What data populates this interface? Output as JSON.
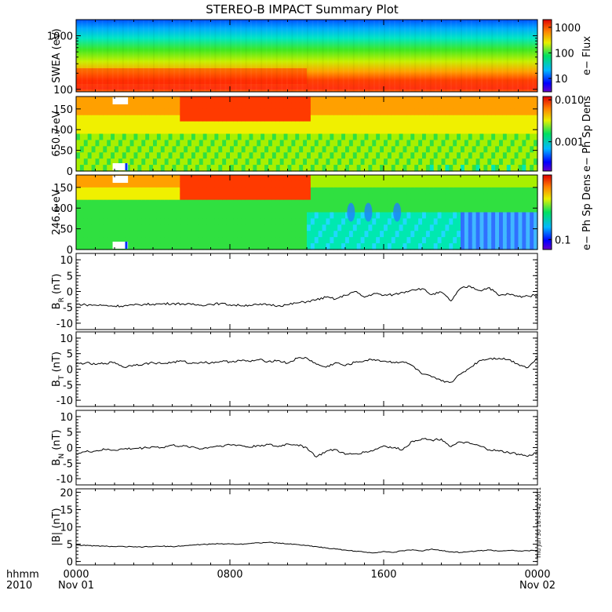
{
  "title": "STEREO-B IMPACT Summary Plot",
  "stamp": "Thu Jun 30 16:43:42 2011",
  "time_axis": {
    "hhmm_label": "hhmm",
    "year_label": "2010",
    "ticks": [
      {
        "time": "0000",
        "date": "Nov 01"
      },
      {
        "time": "0800",
        "date": ""
      },
      {
        "time": "1600",
        "date": ""
      },
      {
        "time": "0000",
        "date": "Nov 02"
      }
    ]
  },
  "chart_data": [
    {
      "type": "heatmap",
      "ylabel": "SWEA (eV)",
      "yscale": "log",
      "ylim": [
        90,
        2000
      ],
      "yticks": [
        "100",
        "1000"
      ],
      "colorbar": {
        "label": "e− Flux",
        "ticks": [
          "10",
          "100",
          "1000"
        ],
        "scale": "log",
        "range": [
          3,
          2000
        ]
      }
    },
    {
      "type": "heatmap",
      "ylabel": "650.7 eV",
      "ylim": [
        0,
        180
      ],
      "yticks": [
        "0",
        "50",
        "100",
        "150"
      ],
      "colorbar": {
        "label": "e− Ph Sp Dens",
        "ticks": [
          "0.001",
          "0.010"
        ],
        "scale": "log",
        "range": [
          0.0002,
          0.012
        ]
      }
    },
    {
      "type": "heatmap",
      "ylabel": "246.6 eV",
      "ylim": [
        0,
        180
      ],
      "yticks": [
        "0",
        "50",
        "100",
        "150"
      ],
      "colorbar": {
        "label": "e− Ph Sp Dens",
        "ticks": [
          "0.1"
        ],
        "scale": "log",
        "range": [
          0.07,
          1.0
        ]
      }
    },
    {
      "type": "line",
      "ylabel": "B_R (nT)",
      "ylim": [
        -12,
        12
      ],
      "yticks": [
        10,
        5,
        0,
        -5,
        -10
      ],
      "x_hours": [
        0,
        0.5,
        1,
        1.5,
        2,
        2.5,
        3,
        3.5,
        4,
        4.5,
        5,
        5.5,
        6,
        6.5,
        7,
        7.5,
        8,
        8.5,
        9,
        9.5,
        10,
        10.5,
        11,
        11.5,
        12,
        12.5,
        13,
        13.5,
        14,
        14.5,
        15,
        15.5,
        16,
        16.5,
        17,
        17.5,
        18,
        18.5,
        19,
        19.5,
        20,
        20.5,
        21,
        21.5,
        22,
        22.5,
        23,
        23.5,
        24
      ],
      "values": [
        -4.0,
        -4.2,
        -4.3,
        -4.4,
        -4.6,
        -4.5,
        -4.3,
        -4.1,
        -4.0,
        -3.9,
        -3.8,
        -3.9,
        -4.1,
        -4.3,
        -4.0,
        -3.8,
        -4.2,
        -4.4,
        -4.3,
        -4.2,
        -4.1,
        -4.5,
        -4.2,
        -3.6,
        -3.2,
        -2.6,
        -1.8,
        -2.4,
        -1.2,
        0.0,
        -1.8,
        -0.6,
        -1.2,
        -1.0,
        -0.3,
        0.6,
        0.9,
        -1.0,
        -0.2,
        -3.0,
        1.0,
        1.6,
        0.3,
        1.2,
        -1.3,
        -0.8,
        -1.6,
        -1.4,
        -1.2
      ]
    },
    {
      "type": "line",
      "ylabel": "B_T (nT)",
      "ylim": [
        -12,
        12
      ],
      "yticks": [
        10,
        5,
        0,
        -5,
        -10
      ],
      "x_hours": [
        0,
        0.5,
        1,
        1.5,
        2,
        2.5,
        3,
        3.5,
        4,
        4.5,
        5,
        5.5,
        6,
        6.5,
        7,
        7.5,
        8,
        8.5,
        9,
        9.5,
        10,
        10.5,
        11,
        11.5,
        12,
        12.5,
        13,
        13.5,
        14,
        14.5,
        15,
        15.5,
        16,
        16.5,
        17,
        17.5,
        18,
        18.5,
        19,
        19.5,
        20,
        20.5,
        21,
        21.5,
        22,
        22.5,
        23,
        23.5,
        24
      ],
      "values": [
        1.7,
        2.0,
        1.5,
        1.9,
        2.2,
        0.6,
        1.4,
        1.6,
        2.1,
        1.8,
        2.2,
        2.6,
        1.8,
        2.3,
        2.0,
        2.5,
        2.4,
        2.8,
        2.5,
        3.0,
        2.5,
        2.8,
        1.9,
        3.5,
        3.6,
        1.6,
        0.6,
        2.1,
        1.1,
        2.2,
        2.7,
        3.1,
        2.6,
        2.2,
        2.4,
        1.1,
        -1.6,
        -2.5,
        -3.8,
        -4.2,
        -1.6,
        0.5,
        2.8,
        3.4,
        3.5,
        3.1,
        1.6,
        0.5,
        3.6
      ]
    },
    {
      "type": "line",
      "ylabel": "B_N (nT)",
      "ylim": [
        -12,
        12
      ],
      "yticks": [
        10,
        5,
        0,
        -5,
        -10
      ],
      "x_hours": [
        0,
        0.5,
        1,
        1.5,
        2,
        2.5,
        3,
        3.5,
        4,
        4.5,
        5,
        5.5,
        6,
        6.5,
        7,
        7.5,
        8,
        8.5,
        9,
        9.5,
        10,
        10.5,
        11,
        11.5,
        12,
        12.5,
        13,
        13.5,
        14,
        14.5,
        15,
        15.5,
        16,
        16.5,
        17,
        17.5,
        18,
        18.5,
        19,
        19.5,
        20,
        20.5,
        21,
        21.5,
        22,
        22.5,
        23,
        23.5,
        24
      ],
      "values": [
        -2.0,
        -1.3,
        -1.1,
        -0.6,
        -0.8,
        -0.4,
        -0.3,
        -0.1,
        0.3,
        0.0,
        0.8,
        0.4,
        0.3,
        -0.4,
        0.2,
        0.6,
        0.9,
        0.8,
        0.1,
        0.7,
        1.0,
        0.3,
        1.2,
        0.9,
        0.0,
        -3.0,
        -1.2,
        -0.6,
        -2.2,
        -2.0,
        -1.5,
        -0.8,
        0.6,
        -0.1,
        -0.6,
        2.1,
        2.9,
        2.4,
        2.8,
        0.3,
        1.8,
        1.3,
        0.5,
        -0.7,
        -1.1,
        -1.6,
        -2.1,
        -2.8,
        -1.5
      ]
    },
    {
      "type": "line",
      "ylabel": "|B| (nT)",
      "ylim": [
        -1,
        21
      ],
      "yticks": [
        20,
        15,
        10,
        5,
        0
      ],
      "x_hours": [
        0,
        0.5,
        1,
        1.5,
        2,
        2.5,
        3,
        3.5,
        4,
        4.5,
        5,
        5.5,
        6,
        6.5,
        7,
        7.5,
        8,
        8.5,
        9,
        9.5,
        10,
        10.5,
        11,
        11.5,
        12,
        12.5,
        13,
        13.5,
        14,
        14.5,
        15,
        15.5,
        16,
        16.5,
        17,
        17.5,
        18,
        18.5,
        19,
        19.5,
        20,
        20.5,
        21,
        21.5,
        22,
        22.5,
        23,
        23.5,
        24
      ],
      "values": [
        4.8,
        4.6,
        4.5,
        4.4,
        4.3,
        4.3,
        4.2,
        4.2,
        4.3,
        4.4,
        4.3,
        4.5,
        4.7,
        4.9,
        5.0,
        5.1,
        5.1,
        5.0,
        5.2,
        5.4,
        5.5,
        5.3,
        5.1,
        4.9,
        4.6,
        4.3,
        3.9,
        3.6,
        3.3,
        3.0,
        2.7,
        2.5,
        2.9,
        2.6,
        3.1,
        3.4,
        3.0,
        3.6,
        3.2,
        2.8,
        2.6,
        2.9,
        3.1,
        3.3,
        3.0,
        3.2,
        3.0,
        3.1,
        3.2
      ]
    }
  ],
  "colors": {
    "axis": "#000000",
    "trace": "#000000",
    "background": "#ffffff"
  }
}
